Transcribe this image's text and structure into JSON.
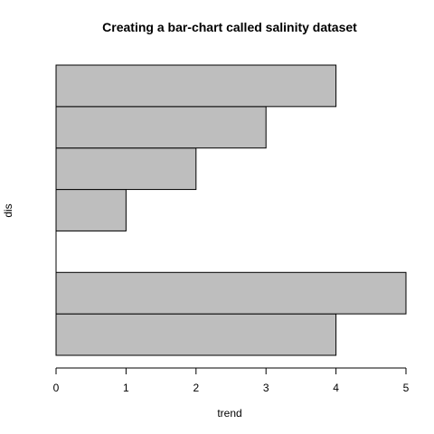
{
  "chart_data": {
    "type": "bar",
    "orientation": "horizontal",
    "title": "Creating a bar-chart called salinity dataset",
    "xlabel": "trend",
    "ylabel": "dis",
    "xlim": [
      0,
      5
    ],
    "x_ticks": [
      0,
      1,
      2,
      3,
      4,
      5
    ],
    "grid": false,
    "bar_fill": "#bebebe",
    "bar_stroke": "#000000",
    "values": [
      4,
      5,
      null,
      1,
      2,
      3,
      4
    ]
  }
}
